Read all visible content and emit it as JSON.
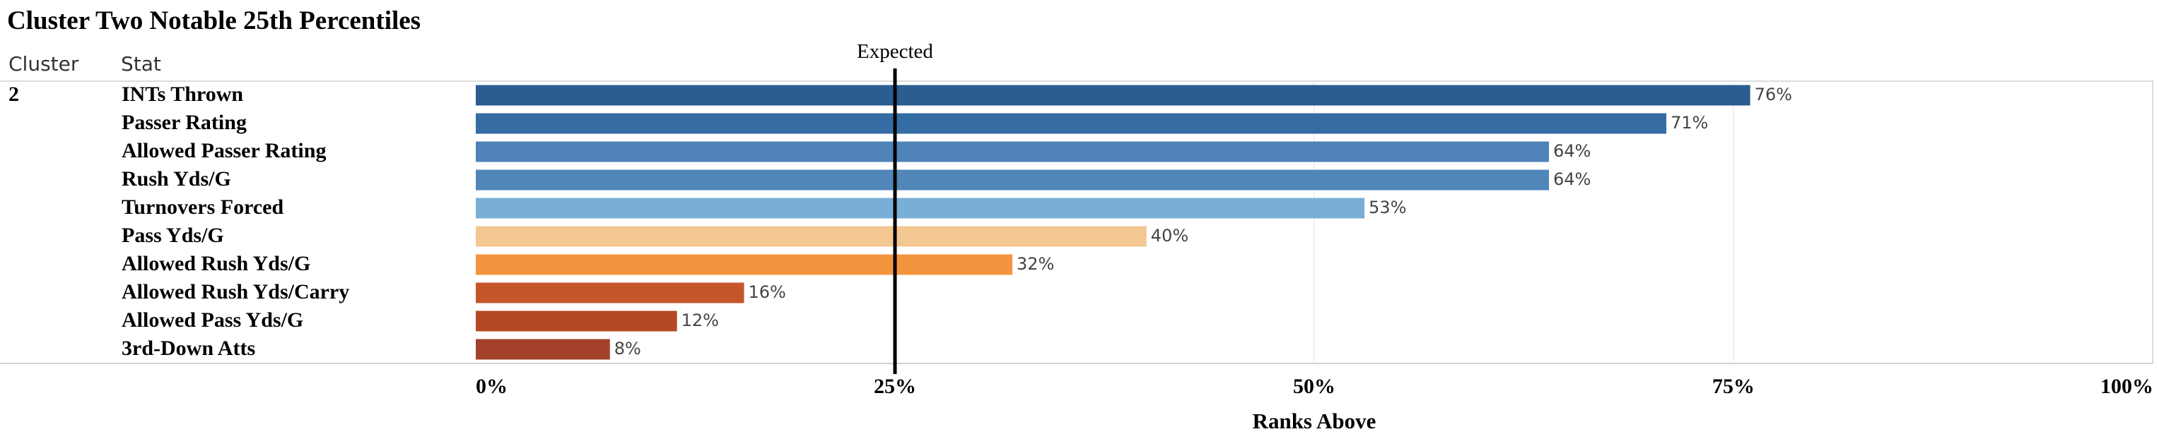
{
  "title": "Cluster Two Notable 25th Percentiles",
  "headers": {
    "cluster": "Cluster",
    "stat": "Stat"
  },
  "chart_data": {
    "type": "bar",
    "orientation": "horizontal",
    "cluster": "2",
    "categories": [
      "INTs Thrown",
      "Passer Rating",
      "Allowed Passer Rating",
      "Rush Yds/G",
      "Turnovers Forced",
      "Pass Yds/G",
      "Allowed Rush Yds/G",
      "Allowed Rush Yds/Carry",
      "Allowed Pass Yds/G",
      "3rd-Down Atts"
    ],
    "values": [
      76,
      71,
      64,
      64,
      53,
      40,
      32,
      16,
      12,
      8
    ],
    "value_labels": [
      "76%",
      "71%",
      "64%",
      "64%",
      "53%",
      "40%",
      "32%",
      "16%",
      "12%",
      "8%"
    ],
    "colors": [
      "#2c5d91",
      "#346ca3",
      "#4f83b7",
      "#5186b8",
      "#79afd7",
      "#f3c792",
      "#f3953e",
      "#c5562a",
      "#b44a24",
      "#a2402a"
    ],
    "xlim": [
      0,
      100
    ],
    "xticks": [
      0,
      25,
      50,
      75,
      100
    ],
    "xtick_labels": [
      "0%",
      "25%",
      "50%",
      "75%",
      "100%"
    ],
    "xlabel": "Ranks Above",
    "reference_line": {
      "value": 25,
      "label": "Expected",
      "color": "#000000"
    },
    "grid": true
  }
}
